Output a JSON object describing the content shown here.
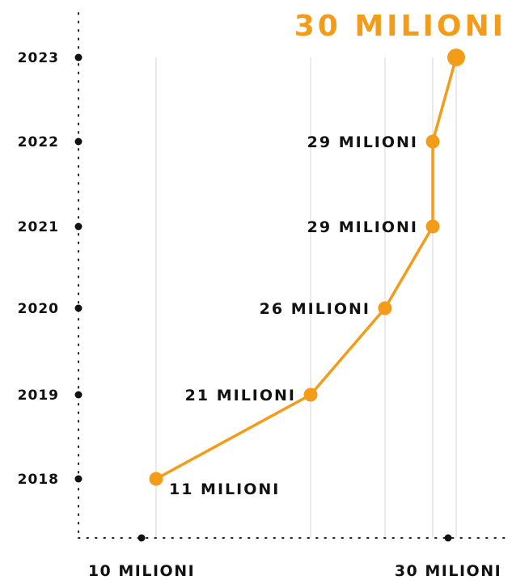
{
  "chart_data": {
    "type": "line",
    "title": "",
    "xlabel": "",
    "ylabel": "",
    "unit": "MILIONI",
    "accent_color": "#f39c1a",
    "highlight_label": "30 MILIONI",
    "x_tick_labels": [
      "10 MILIONI",
      "30 MILIONI"
    ],
    "xlim": [
      5,
      32
    ],
    "grid": true,
    "points": [
      {
        "year": "2018",
        "value": 11,
        "label": "11 MILIONI",
        "label_side": "right-below"
      },
      {
        "year": "2019",
        "value": 21,
        "label": "21 MILIONI",
        "label_side": "left"
      },
      {
        "year": "2020",
        "value": 26,
        "label": "26 MILIONI",
        "label_side": "left"
      },
      {
        "year": "2021",
        "value": 29,
        "label": "29 MILIONI",
        "label_side": "left"
      },
      {
        "year": "2022",
        "value": 29,
        "label": "29 MILIONI",
        "label_side": "left"
      },
      {
        "year": "2023",
        "value": 30.5,
        "label": "",
        "label_side": "none"
      }
    ]
  }
}
